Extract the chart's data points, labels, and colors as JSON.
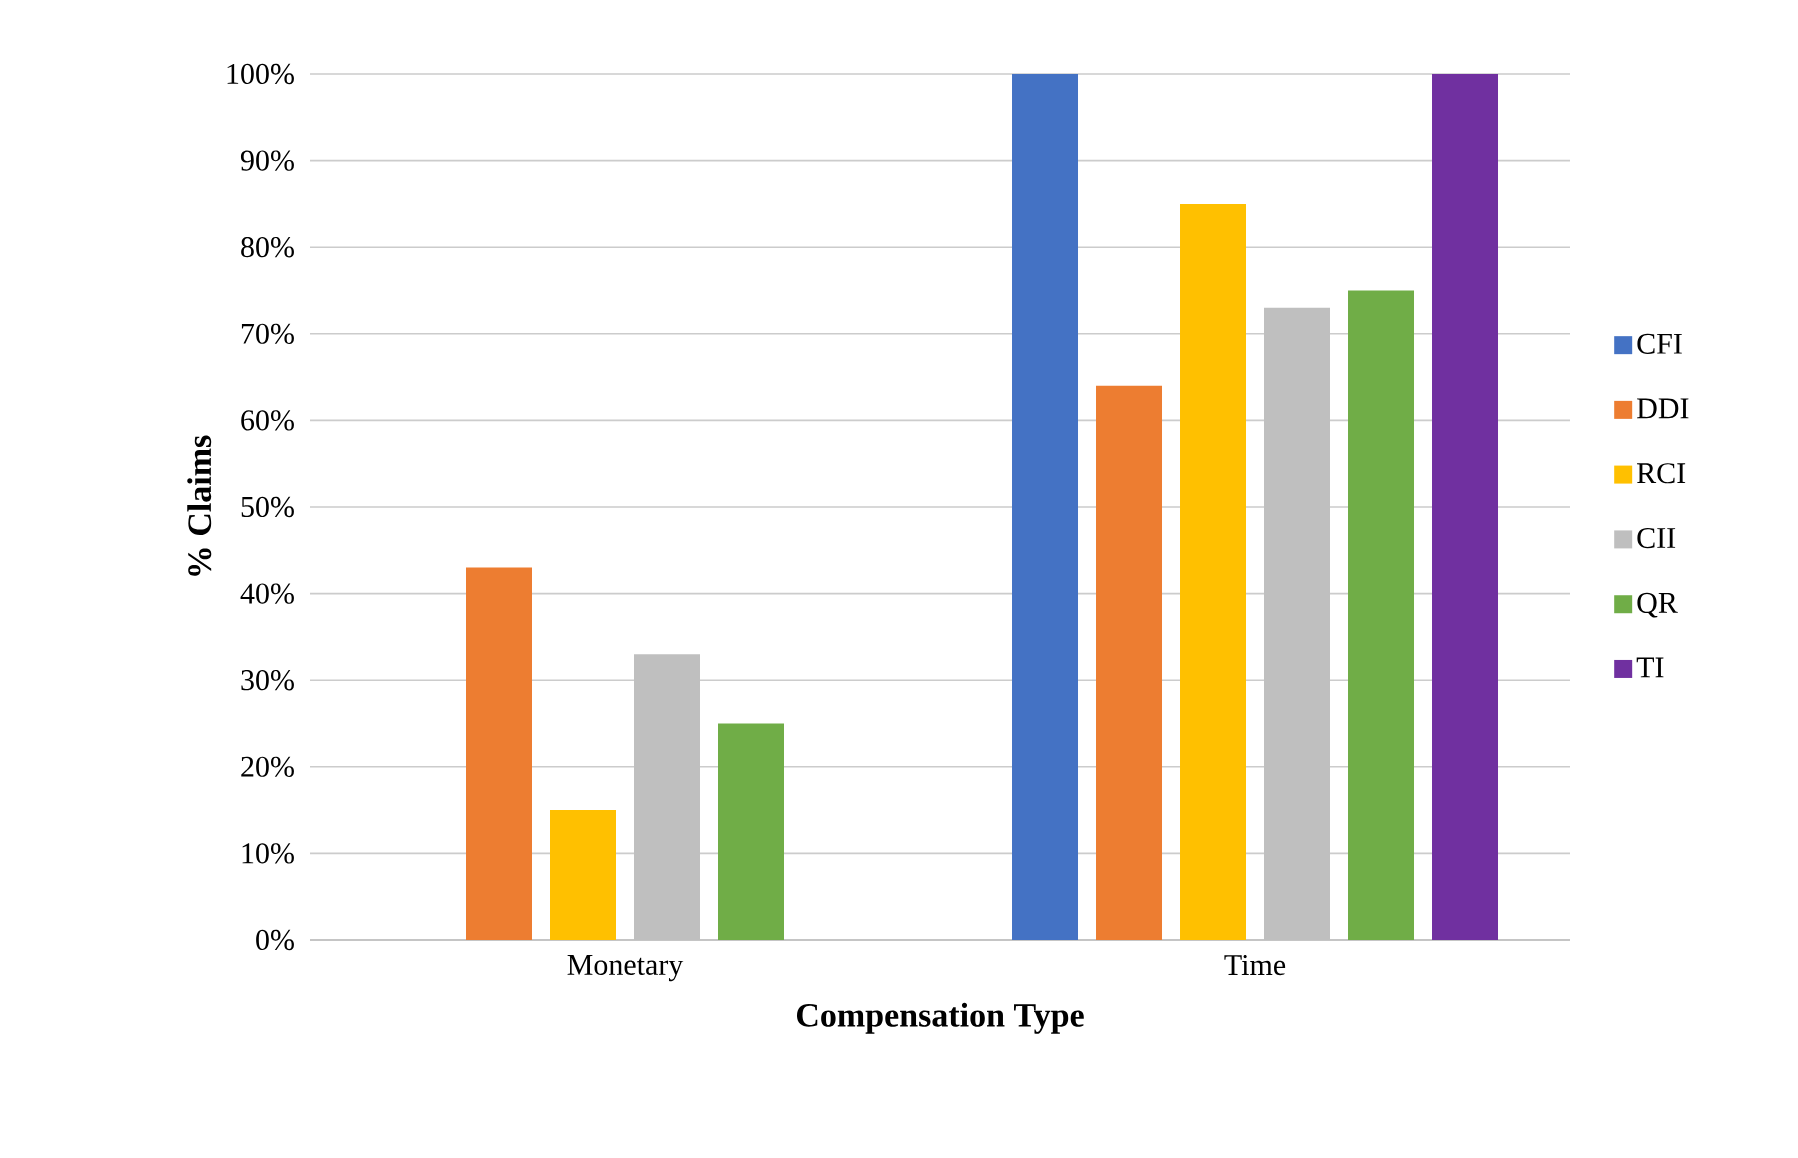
{
  "chart_data": {
    "type": "bar",
    "xlabel": "Compensation Type",
    "ylabel": "% Claims",
    "categories": [
      "Monetary",
      "Time"
    ],
    "series": [
      {
        "name": "CFI",
        "color": "#4472c4",
        "values": [
          0,
          100
        ]
      },
      {
        "name": "DDI",
        "color": "#ed7d31",
        "values": [
          43,
          64
        ]
      },
      {
        "name": "RCI",
        "color": "#ffc000",
        "values": [
          15,
          85
        ]
      },
      {
        "name": "CII",
        "color": "#bfbfbf",
        "values": [
          33,
          73
        ]
      },
      {
        "name": "QR",
        "color": "#70ad47",
        "values": [
          25,
          75
        ]
      },
      {
        "name": "TI",
        "color": "#7030a0",
        "values": [
          0,
          100
        ]
      }
    ],
    "ylim": [
      0,
      100
    ],
    "yticks": [
      {
        "value": 0,
        "label": "0%"
      },
      {
        "value": 10,
        "label": "10%"
      },
      {
        "value": 20,
        "label": "20%"
      },
      {
        "value": 30,
        "label": "30%"
      },
      {
        "value": 40,
        "label": "40%"
      },
      {
        "value": 50,
        "label": "50%"
      },
      {
        "value": 60,
        "label": "60%"
      },
      {
        "value": 70,
        "label": "70%"
      },
      {
        "value": 80,
        "label": "80%"
      },
      {
        "value": 90,
        "label": "90%"
      },
      {
        "value": 100,
        "label": "100%"
      }
    ],
    "grid": "y",
    "legend": "right"
  }
}
